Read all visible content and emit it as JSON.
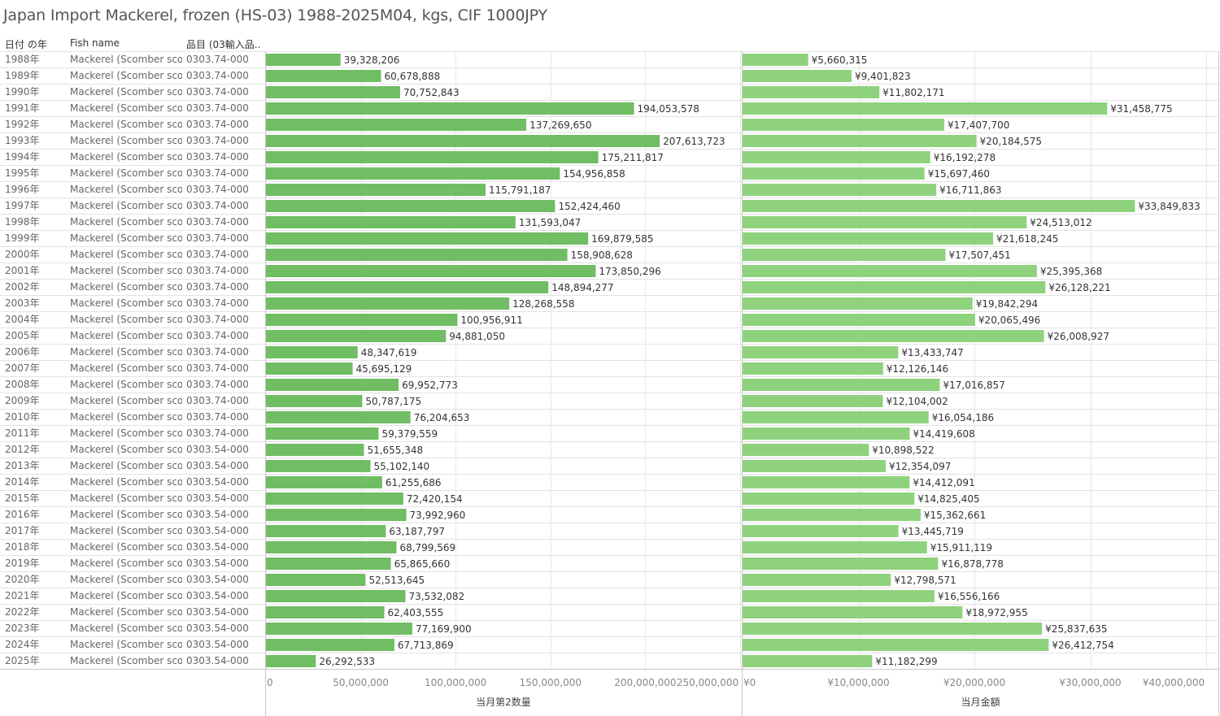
{
  "title": "Japan Import Mackerel, frozen (HS-03) 1988-2025M04, kgs, CIF 1000JPY",
  "headers": {
    "year": "日付 の年",
    "fish": "Fish name",
    "item": "品目 (03輸入品.."
  },
  "colors": {
    "bar_quantity": "#70bd64",
    "bar_value": "#8fd27e",
    "grid": "#e8e8e8",
    "row_line": "#e3e3e3",
    "axis_line": "#c8c8c8",
    "label_text": "#333333",
    "tick_text": "#888888"
  },
  "rows": [
    {
      "year": "1988年",
      "fish": "Mackerel (Scomber sco..",
      "item": "0303.74-000"
    },
    {
      "year": "1989年",
      "fish": "Mackerel (Scomber sco..",
      "item": "0303.74-000"
    },
    {
      "year": "1990年",
      "fish": "Mackerel (Scomber sco..",
      "item": "0303.74-000"
    },
    {
      "year": "1991年",
      "fish": "Mackerel (Scomber sco..",
      "item": "0303.74-000"
    },
    {
      "year": "1992年",
      "fish": "Mackerel (Scomber sco..",
      "item": "0303.74-000"
    },
    {
      "year": "1993年",
      "fish": "Mackerel (Scomber sco..",
      "item": "0303.74-000"
    },
    {
      "year": "1994年",
      "fish": "Mackerel (Scomber sco..",
      "item": "0303.74-000"
    },
    {
      "year": "1995年",
      "fish": "Mackerel (Scomber sco..",
      "item": "0303.74-000"
    },
    {
      "year": "1996年",
      "fish": "Mackerel (Scomber sco..",
      "item": "0303.74-000"
    },
    {
      "year": "1997年",
      "fish": "Mackerel (Scomber sco..",
      "item": "0303.74-000"
    },
    {
      "year": "1998年",
      "fish": "Mackerel (Scomber sco..",
      "item": "0303.74-000"
    },
    {
      "year": "1999年",
      "fish": "Mackerel (Scomber sco..",
      "item": "0303.74-000"
    },
    {
      "year": "2000年",
      "fish": "Mackerel (Scomber sco..",
      "item": "0303.74-000"
    },
    {
      "year": "2001年",
      "fish": "Mackerel (Scomber sco..",
      "item": "0303.74-000"
    },
    {
      "year": "2002年",
      "fish": "Mackerel (Scomber sco..",
      "item": "0303.74-000"
    },
    {
      "year": "2003年",
      "fish": "Mackerel (Scomber sco..",
      "item": "0303.74-000"
    },
    {
      "year": "2004年",
      "fish": "Mackerel (Scomber sco..",
      "item": "0303.74-000"
    },
    {
      "year": "2005年",
      "fish": "Mackerel (Scomber sco..",
      "item": "0303.74-000"
    },
    {
      "year": "2006年",
      "fish": "Mackerel (Scomber sco..",
      "item": "0303.74-000"
    },
    {
      "year": "2007年",
      "fish": "Mackerel (Scomber sco..",
      "item": "0303.74-000"
    },
    {
      "year": "2008年",
      "fish": "Mackerel (Scomber sco..",
      "item": "0303.74-000"
    },
    {
      "year": "2009年",
      "fish": "Mackerel (Scomber sco..",
      "item": "0303.74-000"
    },
    {
      "year": "2010年",
      "fish": "Mackerel (Scomber sco..",
      "item": "0303.74-000"
    },
    {
      "year": "2011年",
      "fish": "Mackerel (Scomber sco..",
      "item": "0303.74-000"
    },
    {
      "year": "2012年",
      "fish": "Mackerel (Scomber sco..",
      "item": "0303.54-000"
    },
    {
      "year": "2013年",
      "fish": "Mackerel (Scomber sco..",
      "item": "0303.54-000"
    },
    {
      "year": "2014年",
      "fish": "Mackerel (Scomber sco..",
      "item": "0303.54-000"
    },
    {
      "year": "2015年",
      "fish": "Mackerel (Scomber sco..",
      "item": "0303.54-000"
    },
    {
      "year": "2016年",
      "fish": "Mackerel (Scomber sco..",
      "item": "0303.54-000"
    },
    {
      "year": "2017年",
      "fish": "Mackerel (Scomber sco..",
      "item": "0303.54-000"
    },
    {
      "year": "2018年",
      "fish": "Mackerel (Scomber sco..",
      "item": "0303.54-000"
    },
    {
      "year": "2019年",
      "fish": "Mackerel (Scomber sco..",
      "item": "0303.54-000"
    },
    {
      "year": "2020年",
      "fish": "Mackerel (Scomber sco..",
      "item": "0303.54-000"
    },
    {
      "year": "2021年",
      "fish": "Mackerel (Scomber sco..",
      "item": "0303.54-000"
    },
    {
      "year": "2022年",
      "fish": "Mackerel (Scomber sco..",
      "item": "0303.54-000"
    },
    {
      "year": "2023年",
      "fish": "Mackerel (Scomber sco..",
      "item": "0303.54-000"
    },
    {
      "year": "2024年",
      "fish": "Mackerel (Scomber sco..",
      "item": "0303.54-000"
    },
    {
      "year": "2025年",
      "fish": "Mackerel (Scomber sco..",
      "item": "0303.54-000"
    }
  ],
  "chart_data": [
    {
      "type": "bar",
      "orientation": "horizontal",
      "categories": [
        "1988年",
        "1989年",
        "1990年",
        "1991年",
        "1992年",
        "1993年",
        "1994年",
        "1995年",
        "1996年",
        "1997年",
        "1998年",
        "1999年",
        "2000年",
        "2001年",
        "2002年",
        "2003年",
        "2004年",
        "2005年",
        "2006年",
        "2007年",
        "2008年",
        "2009年",
        "2010年",
        "2011年",
        "2012年",
        "2013年",
        "2014年",
        "2015年",
        "2016年",
        "2017年",
        "2018年",
        "2019年",
        "2020年",
        "2021年",
        "2022年",
        "2023年",
        "2024年",
        "2025年"
      ],
      "values": [
        39328206,
        60678888,
        70752843,
        194053578,
        137269650,
        207613723,
        175211817,
        154956858,
        115791187,
        152424460,
        131593047,
        169879585,
        158908628,
        173850296,
        148894277,
        128268558,
        100956911,
        94881050,
        48347619,
        45695129,
        69952773,
        50787175,
        76204653,
        59379559,
        51655348,
        55102140,
        61255686,
        72420154,
        73992960,
        63187797,
        68799569,
        65865660,
        52513645,
        73532082,
        62403555,
        77169900,
        67713869,
        26292533
      ],
      "value_labels": [
        "39,328,206",
        "60,678,888",
        "70,752,843",
        "194,053,578",
        "137,269,650",
        "207,613,723",
        "175,211,817",
        "154,956,858",
        "115,791,187",
        "152,424,460",
        "131,593,047",
        "169,879,585",
        "158,908,628",
        "173,850,296",
        "148,894,277",
        "128,268,558",
        "100,956,911",
        "94,881,050",
        "48,347,619",
        "45,695,129",
        "69,952,773",
        "50,787,175",
        "76,204,653",
        "59,379,559",
        "51,655,348",
        "55,102,140",
        "61,255,686",
        "72,420,154",
        "73,992,960",
        "63,187,797",
        "68,799,569",
        "65,865,660",
        "52,513,645",
        "73,532,082",
        "62,403,555",
        "77,169,900",
        "67,713,869",
        "26,292,533"
      ],
      "xlabel": "当月第2数量",
      "xlim": [
        0,
        250000000
      ],
      "ticks": [
        0,
        50000000,
        100000000,
        150000000,
        200000000,
        250000000
      ],
      "tick_labels": [
        "0",
        "50,000,000",
        "100,000,000",
        "150,000,000",
        "200,000,000",
        "250,000,000"
      ],
      "grid": true
    },
    {
      "type": "bar",
      "orientation": "horizontal",
      "categories": [
        "1988年",
        "1989年",
        "1990年",
        "1991年",
        "1992年",
        "1993年",
        "1994年",
        "1995年",
        "1996年",
        "1997年",
        "1998年",
        "1999年",
        "2000年",
        "2001年",
        "2002年",
        "2003年",
        "2004年",
        "2005年",
        "2006年",
        "2007年",
        "2008年",
        "2009年",
        "2010年",
        "2011年",
        "2012年",
        "2013年",
        "2014年",
        "2015年",
        "2016年",
        "2017年",
        "2018年",
        "2019年",
        "2020年",
        "2021年",
        "2022年",
        "2023年",
        "2024年",
        "2025年"
      ],
      "values": [
        5660315,
        9401823,
        11802171,
        31458775,
        17407700,
        20184575,
        16192278,
        15697460,
        16711863,
        33849833,
        24513012,
        21618245,
        17507451,
        25395368,
        26128221,
        19842294,
        20065496,
        26008927,
        13433747,
        12126146,
        17016857,
        12104002,
        16054186,
        14419608,
        10898522,
        12354097,
        14412091,
        14825405,
        15362661,
        13445719,
        15911119,
        16878778,
        12798571,
        16556166,
        18972955,
        25837635,
        26412754,
        11182299
      ],
      "value_labels": [
        "¥5,660,315",
        "¥9,401,823",
        "¥11,802,171",
        "¥31,458,775",
        "¥17,407,700",
        "¥20,184,575",
        "¥16,192,278",
        "¥15,697,460",
        "¥16,711,863",
        "¥33,849,833",
        "¥24,513,012",
        "¥21,618,245",
        "¥17,507,451",
        "¥25,395,368",
        "¥26,128,221",
        "¥19,842,294",
        "¥20,065,496",
        "¥26,008,927",
        "¥13,433,747",
        "¥12,126,146",
        "¥17,016,857",
        "¥12,104,002",
        "¥16,054,186",
        "¥14,419,608",
        "¥10,898,522",
        "¥12,354,097",
        "¥14,412,091",
        "¥14,825,405",
        "¥15,362,661",
        "¥13,445,719",
        "¥15,911,119",
        "¥16,878,778",
        "¥12,798,571",
        "¥16,556,166",
        "¥18,972,955",
        "¥25,837,635",
        "¥26,412,754",
        "¥11,182,299"
      ],
      "xlabel": "当月金額",
      "xlim": [
        0,
        40000000
      ],
      "ticks": [
        0,
        10000000,
        20000000,
        30000000,
        40000000
      ],
      "tick_labels": [
        "¥0",
        "¥10,000,000",
        "¥20,000,000",
        "¥30,000,000",
        "¥40,000,000"
      ],
      "grid": true
    }
  ]
}
